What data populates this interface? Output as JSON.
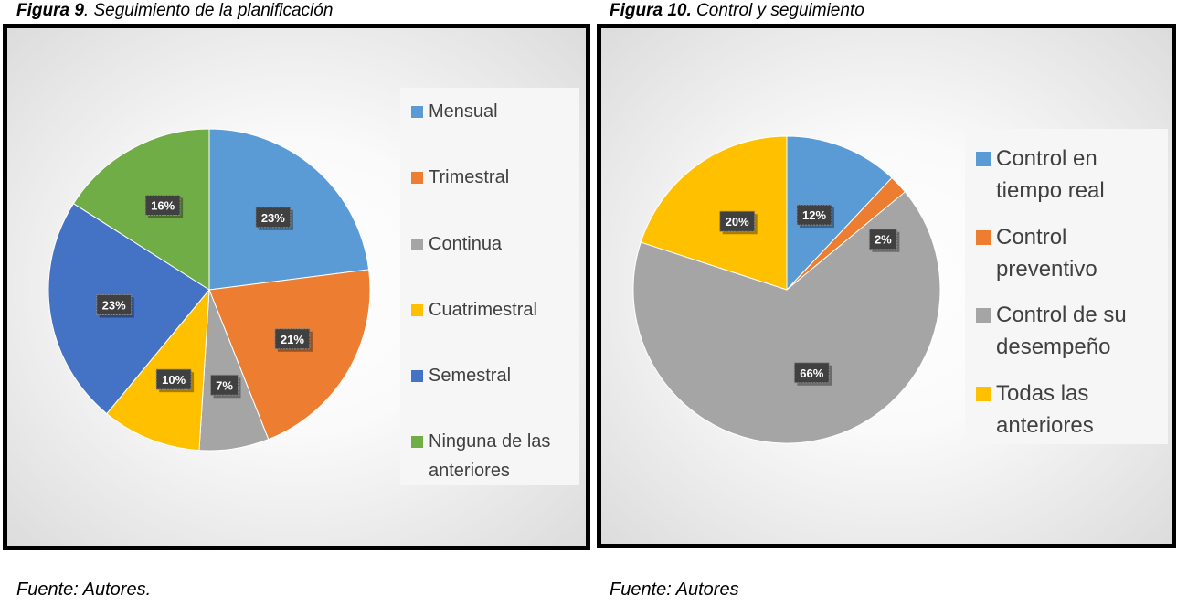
{
  "figures": [
    {
      "caption_number": "Figura 9",
      "caption_text": ". Seguimiento de la planificación",
      "source": "Fuente: Autores."
    },
    {
      "caption_number": "Figura 10.",
      "caption_text": " Control y seguimiento",
      "source": "Fuente: Autores"
    }
  ],
  "chart_data": [
    {
      "type": "pie",
      "title": "",
      "legend_position": "right",
      "categories": [
        "Mensual",
        "Trimestral",
        "Continua",
        "Cuatrimestral",
        "Semestral",
        "Ninguna de las anteriores"
      ],
      "values": [
        23,
        21,
        7,
        10,
        23,
        16
      ],
      "data_labels": [
        "23%",
        "21%",
        "7%",
        "10%",
        "23%",
        "16%"
      ],
      "colors": [
        "#5B9BD5",
        "#ED7D31",
        "#A5A5A5",
        "#FFC000",
        "#4472C4",
        "#70AD47"
      ]
    },
    {
      "type": "pie",
      "title": "",
      "legend_position": "right",
      "categories": [
        "Control en tiempo real",
        "Control preventivo",
        "Control de su desempeño",
        "Todas las anteriores"
      ],
      "values": [
        12,
        2,
        66,
        20
      ],
      "data_labels": [
        "12%",
        "2%",
        "66%",
        "20%"
      ],
      "colors": [
        "#5B9BD5",
        "#ED7D31",
        "#A5A5A5",
        "#FFC000"
      ]
    }
  ]
}
